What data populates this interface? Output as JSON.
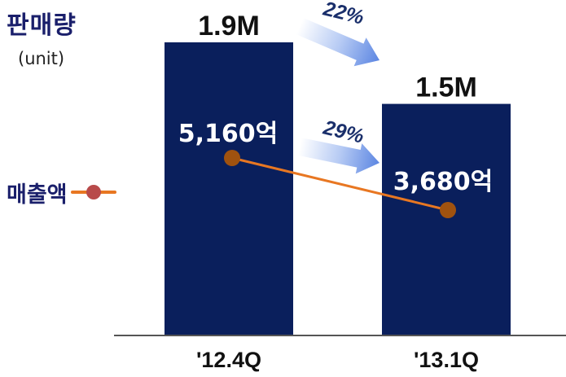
{
  "chart_data": {
    "type": "bar",
    "categories": [
      "'12.4Q",
      "'13.1Q"
    ],
    "ylabel": "판매량",
    "yunit": "(unit)",
    "ylim": [
      0,
      2.2
    ],
    "series": [
      {
        "name": "판매량",
        "values": [
          1.9,
          1.5
        ],
        "value_labels": [
          "1.9M",
          "1.5M"
        ],
        "color": "#0a1f5c"
      },
      {
        "name": "매출액",
        "type": "line",
        "values": [
          5160,
          3680
        ],
        "value_labels": [
          "5,160억",
          "3,680억"
        ],
        "color": "#e87722",
        "marker_color": "#a0520f"
      }
    ],
    "annotations": [
      {
        "text": "22%",
        "from": "'12.4Q",
        "to": "'13.1Q",
        "series": "판매량"
      },
      {
        "text": "29%",
        "from": "'12.4Q",
        "to": "'13.1Q",
        "series": "매출액"
      }
    ]
  }
}
